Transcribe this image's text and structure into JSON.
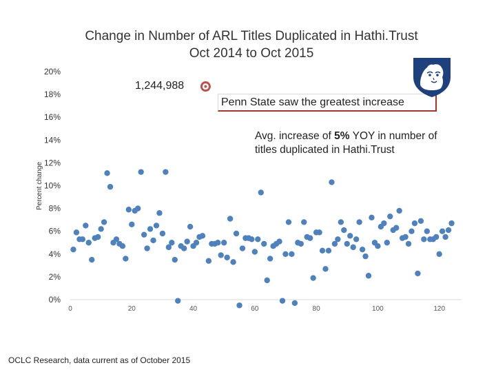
{
  "slide": {
    "title_line1": "Change in Number of ARL Titles Duplicated in Hathi.Trust",
    "title_line2": "Oct 2014 to Oct 2015",
    "callout_max_value": "1,244,988",
    "callout_psu": "Penn State saw the greatest increase",
    "callout_avg_prefix": "Avg. increase of ",
    "callout_avg_bold": "5%",
    "callout_avg_suffix": " YOY in number of titles duplicated in Hathi.Trust",
    "source": "OCLC Research, data current as of October 2015",
    "logo_icon": "penn-state-shield-icon",
    "colors": {
      "points": "#4f81bd",
      "highlight": "#c0504d",
      "logo": "#1e407c"
    }
  },
  "chart_data": {
    "type": "scatter",
    "title": "",
    "xlabel": "",
    "ylabel": "Percent change",
    "xlim": [
      0,
      125
    ],
    "ylim": [
      0,
      20
    ],
    "x_ticks": [
      "0",
      "20",
      "40",
      "60",
      "80",
      "100",
      "120"
    ],
    "y_ticks": [
      "0%",
      "2%",
      "4%",
      "6%",
      "8%",
      "10%",
      "12%",
      "14%",
      "16%",
      "18%",
      "20%"
    ],
    "grid": false,
    "highlight": {
      "x": 44,
      "y": 18.7,
      "label": "1,244,988"
    },
    "series": [
      {
        "values": [
          [
            1,
            4.4
          ],
          [
            2,
            5.9
          ],
          [
            3,
            5.3
          ],
          [
            4,
            5.3
          ],
          [
            5,
            6.5
          ],
          [
            6,
            5.0
          ],
          [
            7,
            3.5
          ],
          [
            8,
            5.4
          ],
          [
            9,
            5.5
          ],
          [
            10,
            6.2
          ],
          [
            11,
            6.8
          ],
          [
            12,
            11.1
          ],
          [
            13,
            9.9
          ],
          [
            14,
            5.0
          ],
          [
            15,
            5.3
          ],
          [
            16,
            4.9
          ],
          [
            17,
            4.7
          ],
          [
            18,
            3.6
          ],
          [
            19,
            7.9
          ],
          [
            20,
            6.6
          ],
          [
            21,
            7.8
          ],
          [
            22,
            8.0
          ],
          [
            23,
            11.2
          ],
          [
            24,
            5.7
          ],
          [
            25,
            4.5
          ],
          [
            26,
            6.2
          ],
          [
            27,
            5.2
          ],
          [
            28,
            6.5
          ],
          [
            29,
            7.6
          ],
          [
            30,
            5.8
          ],
          [
            31,
            11.2
          ],
          [
            32,
            4.6
          ],
          [
            33,
            5.0
          ],
          [
            34,
            3.5
          ],
          [
            35,
            -0.1
          ],
          [
            36,
            4.7
          ],
          [
            37,
            4.5
          ],
          [
            38,
            5.1
          ],
          [
            39,
            6.4
          ],
          [
            40,
            4.7
          ],
          [
            41,
            5.0
          ],
          [
            42,
            5.5
          ],
          [
            43,
            5.6
          ],
          [
            45,
            3.4
          ],
          [
            46,
            4.9
          ],
          [
            47,
            4.9
          ],
          [
            48,
            5.0
          ],
          [
            49,
            3.9
          ],
          [
            50,
            5.0
          ],
          [
            51,
            3.7
          ],
          [
            52,
            7.1
          ],
          [
            53,
            3.3
          ],
          [
            54,
            5.8
          ],
          [
            55,
            -0.5
          ],
          [
            56,
            4.5
          ],
          [
            57,
            5.4
          ],
          [
            58,
            5.4
          ],
          [
            59,
            5.3
          ],
          [
            60,
            4.2
          ],
          [
            61,
            5.3
          ],
          [
            62,
            9.4
          ],
          [
            63,
            4.9
          ],
          [
            64,
            1.7
          ],
          [
            65,
            3.6
          ],
          [
            66,
            4.7
          ],
          [
            67,
            4.9
          ],
          [
            68,
            5.1
          ],
          [
            69,
            -0.1
          ],
          [
            70,
            4.0
          ],
          [
            71,
            6.8
          ],
          [
            72,
            4.0
          ],
          [
            73,
            -0.3
          ],
          [
            74,
            5.0
          ],
          [
            75,
            4.9
          ],
          [
            76,
            6.8
          ],
          [
            77,
            5.5
          ],
          [
            78,
            5.4
          ],
          [
            79,
            1.9
          ],
          [
            80,
            5.9
          ],
          [
            81,
            5.9
          ],
          [
            82,
            4.3
          ],
          [
            83,
            2.7
          ],
          [
            84,
            4.3
          ],
          [
            85,
            10.3
          ],
          [
            86,
            4.9
          ],
          [
            87,
            5.3
          ],
          [
            88,
            6.8
          ],
          [
            89,
            6.1
          ],
          [
            90,
            4.9
          ],
          [
            91,
            5.6
          ],
          [
            92,
            4.6
          ],
          [
            93,
            5.3
          ],
          [
            94,
            6.8
          ],
          [
            95,
            4.4
          ],
          [
            96,
            3.8
          ],
          [
            97,
            2.1
          ],
          [
            98,
            7.2
          ],
          [
            99,
            5.0
          ],
          [
            100,
            4.7
          ],
          [
            101,
            6.4
          ],
          [
            102,
            6.7
          ],
          [
            103,
            5.0
          ],
          [
            104,
            7.3
          ],
          [
            105,
            6.1
          ],
          [
            106,
            6.3
          ],
          [
            107,
            7.8
          ],
          [
            108,
            5.4
          ],
          [
            109,
            5.5
          ],
          [
            110,
            4.9
          ],
          [
            111,
            6.0
          ],
          [
            112,
            6.7
          ],
          [
            113,
            2.3
          ],
          [
            114,
            6.9
          ],
          [
            115,
            5.3
          ],
          [
            116,
            6.0
          ],
          [
            117,
            5.3
          ],
          [
            118,
            5.3
          ],
          [
            119,
            5.5
          ],
          [
            120,
            4.0
          ],
          [
            121,
            6.0
          ],
          [
            122,
            5.5
          ],
          [
            123,
            6.1
          ],
          [
            124,
            6.7
          ]
        ]
      }
    ]
  }
}
